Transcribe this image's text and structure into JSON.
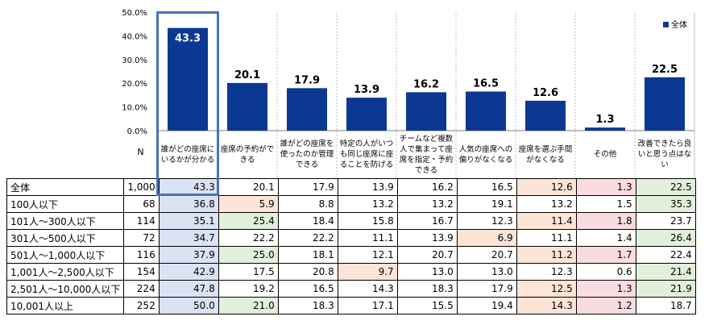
{
  "colors": {
    "bar": "#0b3893",
    "grid_line": "#bfbfbf",
    "highlight_border": "#4a72b8",
    "cell_blue": "#dae3f3",
    "cell_green": "#e2efda",
    "cell_orange": "#fce4d6",
    "cell_pink": "#fadbe0"
  },
  "chart_data": {
    "type": "bar",
    "title": "",
    "legend": "全体",
    "legend_position": "top-right",
    "ylim": [
      0,
      50
    ],
    "yticks": [
      "0.0%",
      "10.0%",
      "20.0%",
      "30.0%",
      "40.0%",
      "50.0%"
    ],
    "ytick_values": [
      0,
      10,
      20,
      30,
      40,
      50
    ],
    "categories": [
      "誰がどの座席にいるかが分かる",
      "座席の予約ができる",
      "誰がどの座席を使ったのか管理できる",
      "特定の人がいつも同じ座席に座ることを防げる",
      "チームなど複数人で集まって座席を指定・予約できる",
      "人気の座席への偏りがなくなる",
      "座席を選ぶ手間がなくなる",
      "その他",
      "改善できたら良いと思う点はない"
    ],
    "values": [
      43.3,
      20.1,
      17.9,
      13.9,
      16.2,
      16.5,
      12.6,
      1.3,
      22.5
    ],
    "value_labels": [
      "43.3",
      "20.1",
      "17.9",
      "13.9",
      "16.2",
      "16.5",
      "12.6",
      "1.3",
      "22.5"
    ]
  },
  "table": {
    "n_header": "N",
    "rows": [
      {
        "label": "全体",
        "n": "1,000",
        "values": [
          "43.3",
          "20.1",
          "17.9",
          "13.9",
          "16.2",
          "16.5",
          "12.6",
          "1.3",
          "22.5"
        ],
        "hl": [
          "blue",
          "",
          "",
          "",
          "",
          "",
          "orange",
          "pink",
          "green"
        ]
      },
      {
        "label": "100人以下",
        "n": "68",
        "values": [
          "36.8",
          "5.9",
          "8.8",
          "13.2",
          "13.2",
          "19.1",
          "13.2",
          "1.5",
          "35.3"
        ],
        "hl": [
          "blue",
          "orange",
          "",
          "",
          "",
          "",
          "",
          "",
          "green"
        ]
      },
      {
        "label": "101人～300人以下",
        "n": "114",
        "values": [
          "35.1",
          "25.4",
          "18.4",
          "15.8",
          "16.7",
          "12.3",
          "11.4",
          "1.8",
          "23.7"
        ],
        "hl": [
          "blue",
          "green",
          "",
          "",
          "",
          "",
          "orange",
          "pink",
          ""
        ]
      },
      {
        "label": "301人～500人以下",
        "n": "72",
        "values": [
          "34.7",
          "22.2",
          "22.2",
          "11.1",
          "13.9",
          "6.9",
          "11.1",
          "1.4",
          "26.4"
        ],
        "hl": [
          "blue",
          "",
          "",
          "",
          "",
          "orange",
          "",
          "",
          "green"
        ]
      },
      {
        "label": "501人～1,000人以下",
        "n": "116",
        "values": [
          "37.9",
          "25.0",
          "18.1",
          "12.1",
          "20.7",
          "20.7",
          "11.2",
          "1.7",
          "22.4"
        ],
        "hl": [
          "blue",
          "green",
          "",
          "",
          "",
          "",
          "orange",
          "pink",
          ""
        ]
      },
      {
        "label": "1,001人～2,500人以下",
        "n": "154",
        "values": [
          "42.9",
          "17.5",
          "20.8",
          "9.7",
          "13.0",
          "13.0",
          "12.3",
          "0.6",
          "21.4"
        ],
        "hl": [
          "blue",
          "",
          "",
          "orange",
          "",
          "",
          "",
          "",
          "green"
        ]
      },
      {
        "label": "2,501人～10,000人以下",
        "n": "224",
        "values": [
          "47.8",
          "19.2",
          "16.5",
          "14.3",
          "18.3",
          "17.9",
          "12.5",
          "1.3",
          "21.9"
        ],
        "hl": [
          "blue",
          "",
          "",
          "",
          "",
          "",
          "orange",
          "pink",
          "green"
        ]
      },
      {
        "label": "10,001人以上",
        "n": "252",
        "values": [
          "50.0",
          "21.0",
          "18.3",
          "17.1",
          "15.5",
          "19.4",
          "14.3",
          "1.2",
          "18.7"
        ],
        "hl": [
          "blue",
          "green",
          "",
          "",
          "",
          "",
          "orange",
          "pink",
          ""
        ]
      }
    ]
  }
}
